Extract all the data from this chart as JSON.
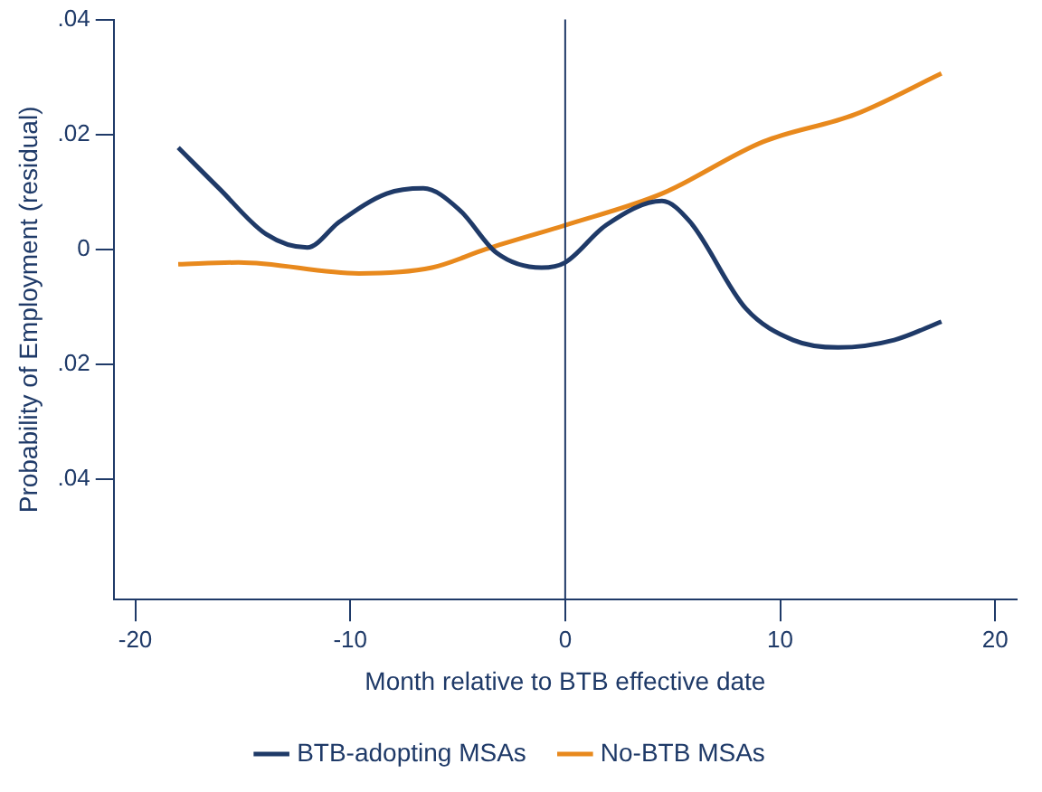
{
  "chart_data": {
    "type": "line",
    "xlabel": "Month relative to BTB effective date",
    "ylabel": "Probability of Employment (residual)",
    "xlim": [
      -21,
      21
    ],
    "ylim": [
      -0.061,
      0.04
    ],
    "xticks": [
      -20,
      -10,
      0,
      10,
      20
    ],
    "yticks": [
      {
        "value": -0.04,
        "label": ".04"
      },
      {
        "value": -0.02,
        "label": ".02"
      },
      0,
      {
        "value": 0.02,
        "label": ".02"
      },
      {
        "value": 0.04,
        "label": ".04"
      }
    ],
    "grid": false,
    "legend": "bottom",
    "ref_lines": [
      {
        "axis": "x",
        "value": 0,
        "color": "#1f3a68"
      }
    ],
    "series": [
      {
        "name": "BTB-adopting MSAs",
        "color": "#1f3a68",
        "x": [
          -18,
          -16.1,
          -13.9,
          -12,
          -10.5,
          -8.3,
          -6.6,
          -4.9,
          -3.2,
          -1.1,
          0,
          1.9,
          4.5,
          5.8,
          8.4,
          10.6,
          12.7,
          15.3,
          17.5
        ],
        "values": [
          0.0177,
          0.0106,
          0.0026,
          0.0003,
          0.0048,
          0.0097,
          0.0106,
          0.0068,
          -0.0006,
          -0.0032,
          -0.0023,
          0.0042,
          0.0084,
          0.0048,
          -0.0103,
          -0.0158,
          -0.0171,
          -0.0158,
          -0.0126
        ]
      },
      {
        "name": "No-BTB MSAs",
        "color": "#e8891d",
        "x": [
          -18,
          -15.2,
          -9.6,
          -6.2,
          -3.7,
          0,
          4.5,
          9.2,
          13.5,
          17.5
        ],
        "values": [
          -0.0026,
          -0.0023,
          -0.0042,
          -0.0032,
          0,
          0.0042,
          0.0097,
          0.0187,
          0.0235,
          0.0306
        ]
      }
    ]
  }
}
